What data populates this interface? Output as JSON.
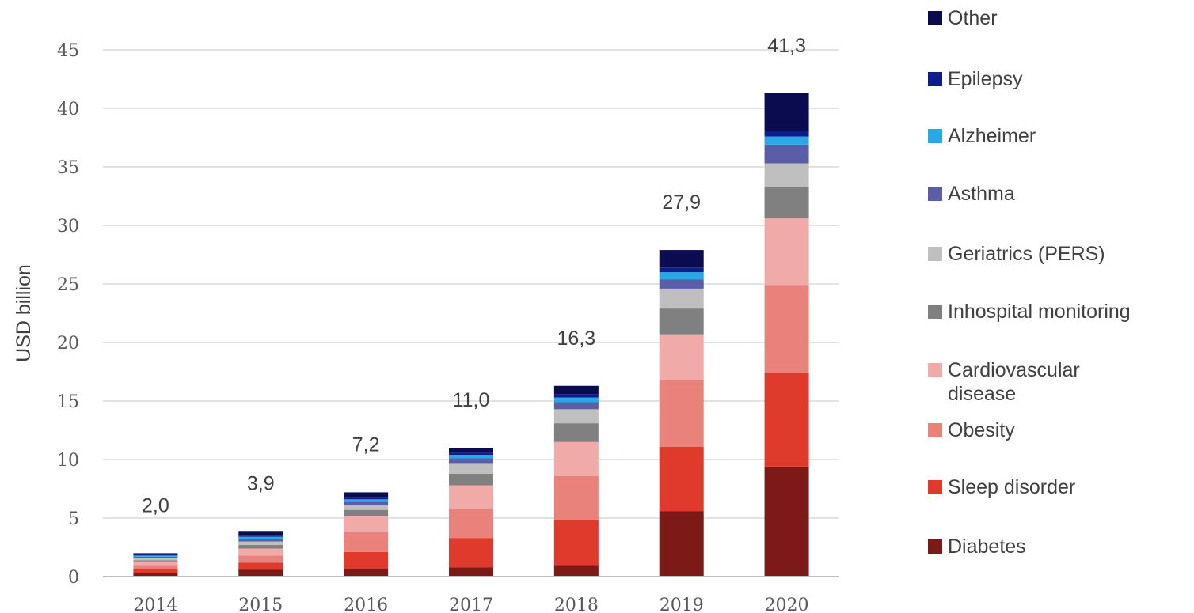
{
  "chart_data": {
    "type": "bar",
    "stacked": true,
    "title": "",
    "xlabel": "",
    "ylabel": "USD billion",
    "ylim": [
      0,
      45
    ],
    "yticks": [
      0,
      5,
      10,
      15,
      20,
      25,
      30,
      35,
      40,
      45
    ],
    "grid": true,
    "legend_position": "right",
    "categories": [
      "2014",
      "2015",
      "2016",
      "2017",
      "2018",
      "2019",
      "2020"
    ],
    "totals": [
      2.0,
      3.9,
      7.2,
      11.0,
      16.3,
      27.9,
      41.3
    ],
    "total_labels": [
      "2,0",
      "3,9",
      "7,2",
      "11,0",
      "16,3",
      "27,9",
      "41,3"
    ],
    "series": [
      {
        "name": "Diabetes",
        "color": "#7b1a16",
        "values": [
          0.3,
          0.6,
          0.7,
          0.8,
          1.0,
          5.6,
          9.4
        ]
      },
      {
        "name": "Sleep disorder",
        "color": "#e03a2c",
        "values": [
          0.4,
          0.6,
          1.4,
          2.5,
          3.8,
          5.5,
          8.0
        ]
      },
      {
        "name": "Obesity",
        "color": "#e8827b",
        "values": [
          0.3,
          0.6,
          1.7,
          2.5,
          3.8,
          5.7,
          7.5
        ]
      },
      {
        "name": "Cardiovascular disease",
        "color": "#f0aaa7",
        "values": [
          0.3,
          0.6,
          1.4,
          2.0,
          2.9,
          3.9,
          5.7
        ]
      },
      {
        "name": "Inhospital monitoring",
        "color": "#808080",
        "values": [
          0.1,
          0.3,
          0.5,
          1.0,
          1.6,
          2.2,
          2.7
        ]
      },
      {
        "name": "Geriatrics (PERS)",
        "color": "#bfbfbf",
        "values": [
          0.2,
          0.3,
          0.4,
          0.9,
          1.2,
          1.7,
          2.0
        ]
      },
      {
        "name": "Asthma",
        "color": "#5b5ea6",
        "values": [
          0.1,
          0.2,
          0.3,
          0.4,
          0.6,
          0.8,
          1.6
        ]
      },
      {
        "name": "Alzheimer",
        "color": "#29a8e6",
        "values": [
          0.1,
          0.2,
          0.2,
          0.3,
          0.4,
          0.6,
          0.7
        ]
      },
      {
        "name": "Epilepsy",
        "color": "#0d1e8c",
        "values": [
          0.1,
          0.1,
          0.2,
          0.2,
          0.3,
          0.4,
          0.5
        ]
      },
      {
        "name": "Other",
        "color": "#0b0b4f",
        "values": [
          0.1,
          0.4,
          0.4,
          0.4,
          0.7,
          1.5,
          3.2
        ]
      }
    ]
  }
}
